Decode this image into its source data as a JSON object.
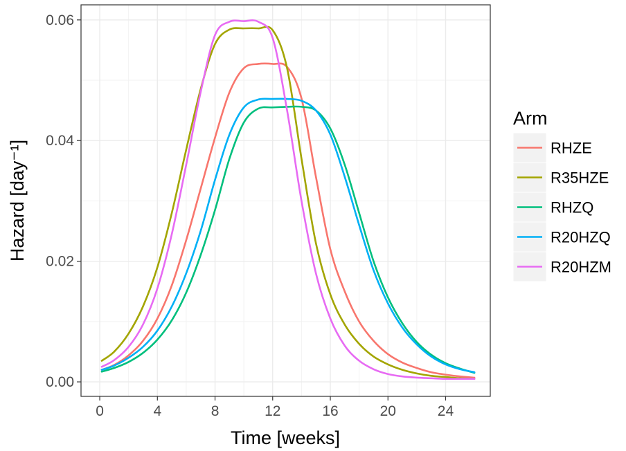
{
  "chart_data": {
    "type": "line",
    "xlabel": "Time [weeks]",
    "ylabel": "Hazard [day⁻¹]",
    "xlim": [
      -1.3,
      27.1
    ],
    "ylim": [
      -0.0024,
      0.0625
    ],
    "x_ticks": [
      0,
      4,
      8,
      12,
      16,
      20,
      24
    ],
    "x_tick_labels": [
      "0",
      "4",
      "8",
      "12",
      "16",
      "20",
      "24"
    ],
    "y_ticks": [
      0.0,
      0.02,
      0.04,
      0.06
    ],
    "y_tick_labels": [
      "0.00",
      "0.02",
      "0.04",
      "0.06"
    ],
    "grid": true,
    "legend": {
      "title": "Arm",
      "position": "right"
    },
    "x": [
      0.14,
      1,
      2,
      3,
      4,
      5,
      6,
      7,
      8,
      9,
      10,
      11,
      12,
      13,
      14,
      15,
      16,
      17,
      18,
      19,
      20,
      21,
      22,
      23,
      24,
      25,
      26
    ],
    "series": [
      {
        "name": "RHZE",
        "color": "#F8766D",
        "values": [
          0.002,
          0.0028,
          0.0044,
          0.0068,
          0.0105,
          0.016,
          0.0235,
          0.032,
          0.0405,
          0.048,
          0.052,
          0.0527,
          0.0527,
          0.0522,
          0.047,
          0.034,
          0.022,
          0.015,
          0.01,
          0.0068,
          0.0046,
          0.0032,
          0.0023,
          0.0016,
          0.0012,
          0.0009,
          0.0007
        ]
      },
      {
        "name": "R35HZE",
        "color": "#A3A500",
        "values": [
          0.0035,
          0.005,
          0.008,
          0.0125,
          0.019,
          0.028,
          0.0385,
          0.0485,
          0.056,
          0.0584,
          0.0586,
          0.0586,
          0.0583,
          0.052,
          0.037,
          0.023,
          0.0145,
          0.0095,
          0.0063,
          0.0042,
          0.0029,
          0.002,
          0.0014,
          0.001,
          0.0008,
          0.0006,
          0.0005
        ]
      },
      {
        "name": "RHZQ",
        "color": "#00BF7D",
        "values": [
          0.0017,
          0.0023,
          0.0033,
          0.0048,
          0.007,
          0.0102,
          0.0148,
          0.021,
          0.0285,
          0.037,
          0.043,
          0.0453,
          0.0455,
          0.0456,
          0.0456,
          0.045,
          0.042,
          0.036,
          0.028,
          0.02,
          0.014,
          0.0097,
          0.0066,
          0.0045,
          0.0031,
          0.0022,
          0.0015
        ]
      },
      {
        "name": "R20HZQ",
        "color": "#00B0F6",
        "values": [
          0.002,
          0.0027,
          0.004,
          0.0058,
          0.0085,
          0.0125,
          0.018,
          0.025,
          0.0335,
          0.041,
          0.0455,
          0.0468,
          0.0469,
          0.0469,
          0.0466,
          0.045,
          0.041,
          0.034,
          0.026,
          0.0185,
          0.013,
          0.009,
          0.0062,
          0.0042,
          0.0029,
          0.0021,
          0.0016
        ]
      },
      {
        "name": "R20HZM",
        "color": "#E76BF3",
        "values": [
          0.0025,
          0.0036,
          0.0058,
          0.0095,
          0.0155,
          0.0245,
          0.036,
          0.048,
          0.0575,
          0.0597,
          0.0598,
          0.0597,
          0.057,
          0.045,
          0.03,
          0.018,
          0.0105,
          0.006,
          0.0035,
          0.0021,
          0.0013,
          0.0009,
          0.0007,
          0.0006,
          0.0005,
          0.0005,
          0.0005
        ]
      }
    ]
  }
}
